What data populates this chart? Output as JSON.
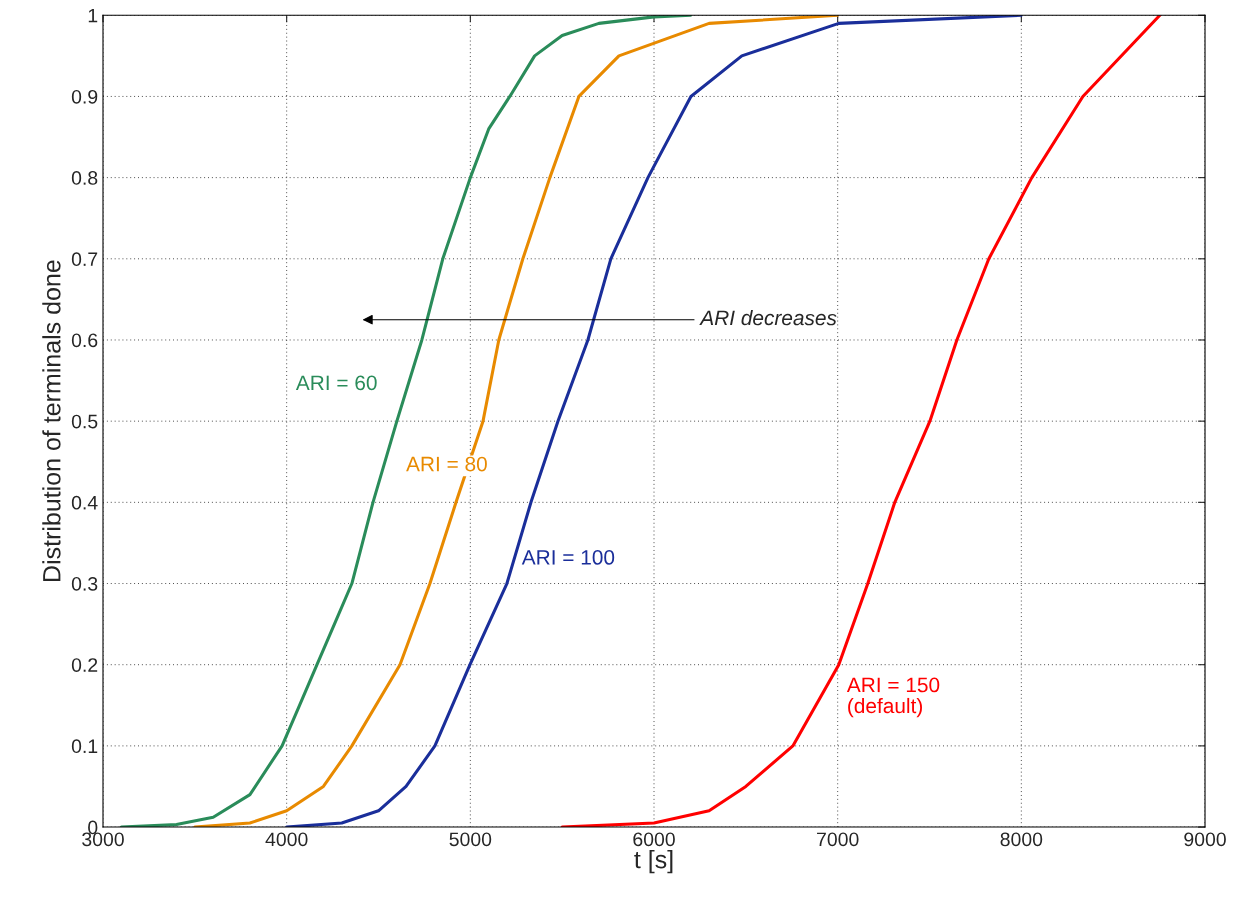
{
  "chart_data": {
    "type": "line",
    "xlabel": "t [s]",
    "ylabel": "Distribution of terminals done",
    "xlim": [
      3000,
      9000
    ],
    "ylim": [
      0,
      1
    ],
    "xticks": [
      3000,
      4000,
      5000,
      6000,
      7000,
      8000,
      9000
    ],
    "yticks": [
      0,
      0.1,
      0.2,
      0.3,
      0.4,
      0.5,
      0.6,
      0.7,
      0.8,
      0.9,
      1
    ],
    "grid": true,
    "legend": false,
    "line_style": "solid",
    "marker": "none",
    "annotations": [
      "ARI decreases"
    ],
    "series": [
      {
        "name": "ARI = 60",
        "color": "#2a8c5a",
        "x": [
          3100,
          3400,
          3600,
          3800,
          3975,
          4070,
          4165,
          4260,
          4355,
          4470,
          4600,
          4736,
          4850,
          5000,
          5100,
          5215,
          5350,
          5500,
          5700,
          6000,
          6200
        ],
        "values": [
          0,
          0.003,
          0.012,
          0.04,
          0.1,
          0.15,
          0.2,
          0.25,
          0.3,
          0.4,
          0.5,
          0.6,
          0.7,
          0.8,
          0.86,
          0.9,
          0.95,
          0.975,
          0.99,
          0.998,
          1
        ]
      },
      {
        "name": "ARI = 80",
        "color": "#e88a00",
        "x": [
          3500,
          3800,
          4000,
          4200,
          4355,
          4617,
          4780,
          4922,
          5069,
          5155,
          5286,
          5433,
          5591,
          5809,
          6300,
          7000
        ],
        "values": [
          0,
          0.005,
          0.02,
          0.05,
          0.1,
          0.2,
          0.3,
          0.4,
          0.5,
          0.6,
          0.7,
          0.8,
          0.9,
          0.95,
          0.99,
          1
        ]
      },
      {
        "name": "ARI = 100",
        "color": "#1a2e9a",
        "x": [
          4000,
          4300,
          4500,
          4650,
          4807,
          4998,
          5199,
          5330,
          5477,
          5640,
          5765,
          5967,
          6201,
          6478,
          7006,
          8000
        ],
        "values": [
          0,
          0.005,
          0.02,
          0.05,
          0.1,
          0.2,
          0.3,
          0.4,
          0.5,
          0.6,
          0.7,
          0.8,
          0.9,
          0.95,
          0.99,
          1
        ]
      },
      {
        "name": "ARI = 150\n(default)",
        "color": "#ff0000",
        "x": [
          5500,
          6000,
          6300,
          6500,
          6756,
          7006,
          7164,
          7311,
          7502,
          7649,
          7823,
          8057,
          8335,
          8754
        ],
        "values": [
          0,
          0.005,
          0.02,
          0.05,
          0.1,
          0.2,
          0.3,
          0.4,
          0.5,
          0.6,
          0.7,
          0.8,
          0.9,
          1
        ]
      }
    ]
  }
}
